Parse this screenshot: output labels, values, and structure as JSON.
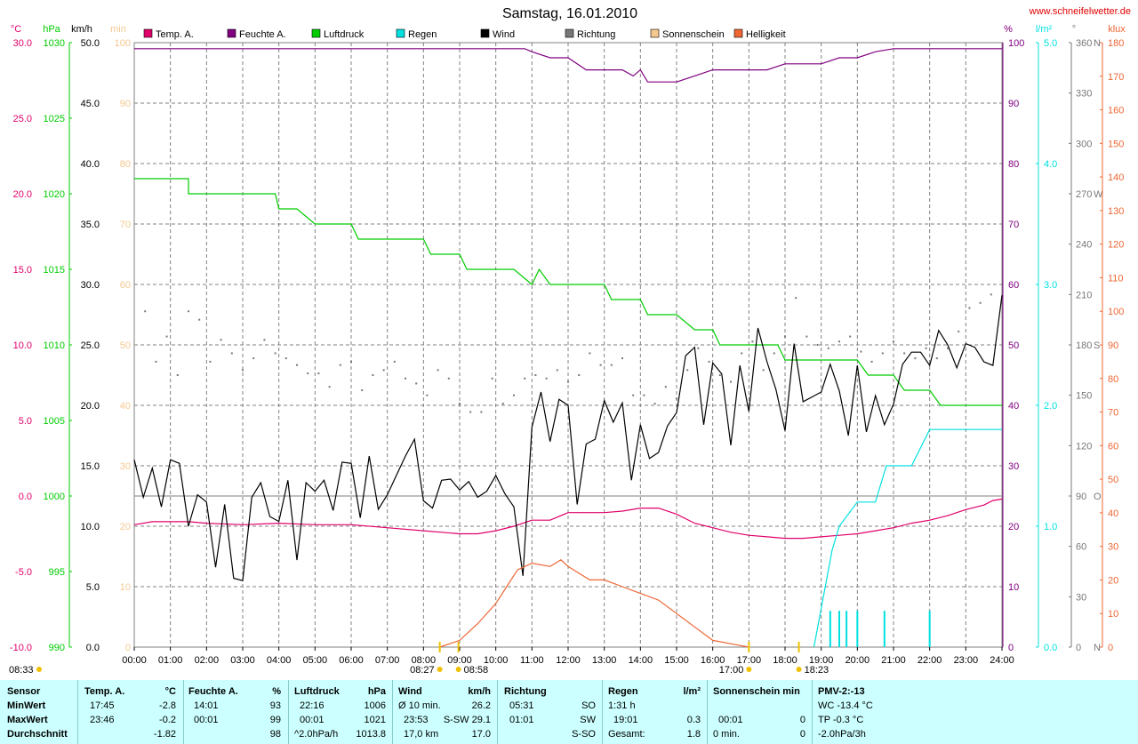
{
  "title": "Samstag, 16.01.2010",
  "website": "www.schneifelwetter.de",
  "colors": {
    "temp": "#e0006a",
    "humidity": "#800080",
    "pressure": "#00cc00",
    "rain": "#00e0e0",
    "wind": "#000000",
    "direction": "#777777",
    "sunshine": "#f5c890",
    "brightness": "#ee6633",
    "grid": "#808080",
    "footer_bg": "#ccffff"
  },
  "chart_data": {
    "type": "line",
    "legend": [
      {
        "label": "Temp. A.",
        "color": "#e0006a"
      },
      {
        "label": "Feuchte A.",
        "color": "#800080"
      },
      {
        "label": "Luftdruck",
        "color": "#00cc00"
      },
      {
        "label": "Regen",
        "color": "#00e0e0"
      },
      {
        "label": "Wind",
        "color": "#000000"
      },
      {
        "label": "Richtung",
        "color": "#777777"
      },
      {
        "label": "Sonnenschein",
        "color": "#f5c890"
      },
      {
        "label": "Helligkeit",
        "color": "#ee6633"
      }
    ],
    "x_ticks": [
      "00:00",
      "01:00",
      "02:00",
      "03:00",
      "04:00",
      "05:00",
      "06:00",
      "07:00",
      "08:00",
      "09:00",
      "10:00",
      "11:00",
      "12:00",
      "13:00",
      "14:00",
      "15:00",
      "16:00",
      "17:00",
      "18:00",
      "19:00",
      "20:00",
      "21:00",
      "22:00",
      "23:00",
      "24:00"
    ],
    "x_range": [
      0,
      24
    ],
    "axes": {
      "temp": {
        "unit": "°C",
        "min": -10,
        "max": 30,
        "ticks": [
          "-10.0",
          "-5.0",
          "0.0",
          "5.0",
          "10.0",
          "15.0",
          "20.0",
          "25.0",
          "30.0"
        ]
      },
      "pressure": {
        "unit": "hPa",
        "min": 990,
        "max": 1030,
        "ticks": [
          "990",
          "995",
          "1000",
          "1005",
          "1010",
          "1015",
          "1020",
          "1025",
          "1030"
        ]
      },
      "wind": {
        "unit": "km/h",
        "min": 0,
        "max": 50,
        "ticks": [
          "0.0",
          "5.0",
          "10.0",
          "15.0",
          "20.0",
          "25.0",
          "30.0",
          "35.0",
          "40.0",
          "45.0",
          "50.0"
        ]
      },
      "sunshine": {
        "unit": "min",
        "min": 0,
        "max": 100,
        "ticks": [
          "0",
          "10",
          "20",
          "30",
          "40",
          "50",
          "60",
          "70",
          "80",
          "90",
          "100"
        ]
      },
      "humidity": {
        "unit": "%",
        "min": 0,
        "max": 100,
        "ticks": [
          "0",
          "10",
          "20",
          "30",
          "40",
          "50",
          "60",
          "70",
          "80",
          "90",
          "100"
        ]
      },
      "rain": {
        "unit": "l/m²",
        "min": 0,
        "max": 5,
        "ticks": [
          "0.0",
          "1.0",
          "2.0",
          "3.0",
          "4.0",
          "5.0"
        ]
      },
      "direction": {
        "unit": "°",
        "min": 0,
        "max": 360,
        "ticks": [
          "0",
          "30",
          "60",
          "90",
          "120",
          "150",
          "180",
          "210",
          "240",
          "270",
          "300",
          "330",
          "360"
        ],
        "labels": {
          "0": "N",
          "90": "O",
          "180": "S",
          "270": "W",
          "360": "N"
        }
      },
      "brightness": {
        "unit": "klux",
        "min": 0,
        "max": 180,
        "ticks": [
          "0",
          "10",
          "20",
          "30",
          "40",
          "50",
          "60",
          "70",
          "80",
          "90",
          "100",
          "110",
          "120",
          "130",
          "140",
          "150",
          "160",
          "170",
          "180"
        ]
      }
    },
    "series": [
      {
        "name": "Temp. A.",
        "axis": "temp",
        "x": [
          0,
          0.5,
          1,
          1.5,
          2,
          3,
          4,
          5,
          6,
          7,
          8,
          8.5,
          9,
          9.5,
          10,
          10.5,
          11,
          11.5,
          12,
          12.5,
          13,
          13.5,
          14,
          14.5,
          15,
          15.5,
          16,
          16.5,
          17,
          17.5,
          18,
          18.5,
          19,
          19.5,
          20,
          20.5,
          21,
          21.5,
          22,
          22.5,
          23,
          23.5,
          23.75,
          24
        ],
        "y": [
          -1.9,
          -1.7,
          -1.7,
          -1.7,
          -1.8,
          -1.9,
          -1.8,
          -1.9,
          -1.9,
          -2.1,
          -2.3,
          -2.4,
          -2.5,
          -2.5,
          -2.3,
          -2.0,
          -1.6,
          -1.6,
          -1.1,
          -1.1,
          -1.1,
          -1.0,
          -0.8,
          -0.8,
          -1.2,
          -1.8,
          -2.1,
          -2.4,
          -2.6,
          -2.7,
          -2.8,
          -2.8,
          -2.7,
          -2.6,
          -2.5,
          -2.3,
          -2.1,
          -1.8,
          -1.6,
          -1.3,
          -0.9,
          -0.6,
          -0.3,
          -0.2
        ]
      },
      {
        "name": "Feuchte A.",
        "axis": "humidity",
        "x": [
          0,
          10.8,
          11,
          11.5,
          12,
          12.5,
          13,
          13.5,
          13.8,
          14,
          14.2,
          15,
          15.5,
          16,
          16.5,
          17,
          17.5,
          18,
          19,
          19.5,
          20,
          20.5,
          21,
          22,
          23,
          24
        ],
        "y": [
          99,
          99,
          98.5,
          97.5,
          97.5,
          95.5,
          95.5,
          95.5,
          94.5,
          95.5,
          93.5,
          93.5,
          94.5,
          95.5,
          95.5,
          95.5,
          95.5,
          96.5,
          96.5,
          97.5,
          97.5,
          98.5,
          99,
          99,
          99,
          99
        ]
      },
      {
        "name": "Luftdruck",
        "axis": "pressure",
        "x": [
          0,
          1.5,
          1.5,
          3.9,
          4.0,
          4.5,
          5.0,
          6.0,
          6.2,
          8.0,
          8.2,
          9.0,
          9.2,
          10.5,
          11.0,
          11.2,
          11.5,
          13.0,
          13.2,
          14.0,
          14.2,
          15.0,
          15.5,
          16.0,
          16.2,
          17.8,
          18.0,
          20.0,
          20.3,
          21.0,
          21.3,
          22.0,
          22.3,
          24.0
        ],
        "y": [
          1021,
          1021,
          1020,
          1020,
          1019,
          1019,
          1018,
          1018,
          1017,
          1017,
          1016,
          1016,
          1015,
          1015,
          1014,
          1015,
          1014,
          1014,
          1013,
          1013,
          1012,
          1012,
          1011,
          1011,
          1010,
          1010,
          1009,
          1009,
          1008,
          1008,
          1007,
          1007,
          1006,
          1006
        ]
      },
      {
        "name": "Wind",
        "axis": "wind",
        "x": [
          0,
          0.25,
          0.5,
          0.75,
          1,
          1.25,
          1.5,
          1.75,
          2,
          2.25,
          2.5,
          2.75,
          3,
          3.25,
          3.5,
          3.75,
          4,
          4.25,
          4.5,
          4.75,
          5,
          5.25,
          5.5,
          5.75,
          6,
          6.25,
          6.5,
          6.75,
          7,
          7.25,
          7.5,
          7.75,
          8,
          8.25,
          8.5,
          8.75,
          9,
          9.25,
          9.5,
          9.75,
          10,
          10.25,
          10.5,
          10.75,
          11,
          11.25,
          11.5,
          11.75,
          12,
          12.25,
          12.5,
          12.75,
          13,
          13.25,
          13.5,
          13.75,
          14,
          14.25,
          14.5,
          14.75,
          15,
          15.25,
          15.5,
          15.75,
          16,
          16.25,
          16.5,
          16.75,
          17,
          17.25,
          17.5,
          17.75,
          18,
          18.25,
          18.5,
          18.75,
          19,
          19.25,
          19.5,
          19.75,
          20,
          20.25,
          20.5,
          20.75,
          21,
          21.25,
          21.5,
          21.75,
          22,
          22.25,
          22.5,
          22.75,
          23,
          23.25,
          23.5,
          23.75,
          24
        ],
        "y": [
          15.5,
          12.4,
          14.8,
          11.6,
          15.5,
          15.2,
          10.0,
          12.6,
          12.0,
          6.6,
          11.8,
          5.7,
          5.5,
          12.4,
          13.6,
          10.8,
          10.4,
          13.8,
          7.2,
          13.6,
          12.9,
          13.8,
          11.3,
          15.3,
          15.2,
          10.7,
          15.8,
          11.4,
          12.6,
          14.2,
          15.8,
          17.2,
          12.1,
          11.5,
          13.8,
          13.9,
          13.0,
          13.7,
          12.4,
          12.9,
          14.2,
          12.7,
          11.6,
          5.9,
          18.2,
          21.1,
          17.0,
          20.5,
          20.0,
          11.8,
          16.8,
          17.2,
          20.4,
          18.6,
          20.2,
          13.8,
          18.4,
          15.6,
          16.1,
          18.3,
          19.4,
          24.1,
          24.8,
          18.4,
          23.5,
          22.6,
          16.7,
          23.3,
          19.5,
          26.4,
          23.6,
          21.3,
          17.9,
          25.1,
          20.3,
          20.7,
          21.1,
          23.4,
          21.2,
          17.5,
          23.3,
          17.8,
          20.8,
          18.4,
          20.1,
          23.4,
          24.4,
          24.4,
          23.3,
          26.2,
          25.0,
          23.1,
          25.1,
          24.8,
          23.6,
          23.3,
          29.1
        ]
      },
      {
        "name": "Richtung",
        "axis": "direction",
        "type": "scatter",
        "x": [
          0.3,
          0.6,
          0.9,
          1.2,
          1.5,
          1.8,
          2.1,
          2.4,
          2.7,
          3.0,
          3.3,
          3.6,
          3.9,
          4.2,
          4.5,
          4.8,
          5.1,
          5.4,
          5.7,
          6.0,
          6.3,
          6.6,
          6.9,
          7.2,
          7.5,
          7.8,
          8.1,
          8.4,
          8.7,
          9.0,
          9.3,
          9.6,
          9.9,
          10.2,
          10.5,
          10.8,
          11.1,
          11.4,
          11.7,
          12.0,
          12.3,
          12.6,
          12.9,
          13.2,
          13.5,
          13.8,
          14.1,
          14.4,
          14.7,
          15.0,
          15.3,
          15.6,
          15.9,
          16.2,
          16.5,
          16.8,
          17.1,
          17.4,
          17.7,
          18.0,
          18.3,
          18.6,
          18.9,
          19.2,
          19.5,
          19.8,
          20.1,
          20.4,
          20.7,
          21.0,
          21.3,
          21.6,
          21.9,
          22.2,
          22.5,
          22.8,
          23.1,
          23.4,
          23.7
        ],
        "y": [
          200,
          170,
          185,
          162,
          200,
          195,
          170,
          183,
          175,
          165,
          172,
          183,
          175,
          172,
          168,
          163,
          163,
          155,
          168,
          170,
          153,
          162,
          165,
          170,
          160,
          157,
          150,
          165,
          160,
          145,
          140,
          140,
          160,
          145,
          150,
          160,
          162,
          160,
          165,
          158,
          162,
          175,
          168,
          168,
          172,
          150,
          150,
          145,
          155,
          148,
          165,
          178,
          170,
          162,
          158,
          175,
          182,
          165,
          175,
          185,
          208,
          185,
          180,
          178,
          182,
          185,
          176,
          170,
          175,
          182,
          175,
          172,
          178,
          172,
          178,
          188,
          202,
          205,
          210
        ]
      },
      {
        "name": "Helligkeit",
        "axis": "brightness",
        "x": [
          8.45,
          9.0,
          9.5,
          10.0,
          10.3,
          10.6,
          11.0,
          11.5,
          11.8,
          12.0,
          12.3,
          12.6,
          13.0,
          13.5,
          14.0,
          14.5,
          15.0,
          15.5,
          16.0,
          16.5,
          17.0
        ],
        "y": [
          0,
          2,
          7,
          13,
          18,
          23,
          25,
          24,
          26,
          24,
          22,
          20,
          20,
          18,
          16,
          14,
          10,
          6,
          2,
          1,
          0
        ]
      },
      {
        "name": "Regen",
        "axis": "rain",
        "x": [
          18.8,
          19.3,
          19.5,
          20.0,
          20.5,
          20.8,
          21.0,
          21.5,
          22.0,
          24.0
        ],
        "y": [
          0,
          0.8,
          1.0,
          1.2,
          1.2,
          1.5,
          1.5,
          1.5,
          1.8,
          1.8
        ]
      },
      {
        "name": "Regen Intervall",
        "axis": "rain",
        "type": "bar",
        "x": [
          19.25,
          19.5,
          19.7,
          20.0,
          20.75,
          22.0
        ],
        "y": [
          0.3,
          0.3,
          0.3,
          0.3,
          0.3,
          0.3
        ]
      }
    ],
    "sun_markers": {
      "sunrise": "08:33",
      "civil_dawn": "08:27",
      "dawn_end": "08:58",
      "sunset": "17:00",
      "civil_dusk": "18:23"
    }
  },
  "footer": {
    "headers": {
      "sensor": "Sensor",
      "temp": "Temp. A.",
      "temp_unit": "°C",
      "humidity": "Feuchte A.",
      "humidity_unit": "%",
      "pressure": "Luftdruck",
      "pressure_unit": "hPa",
      "wind": "Wind",
      "wind_unit": "km/h",
      "direction": "Richtung",
      "rain": "Regen",
      "rain_unit": "l/m²",
      "sunshine": "Sonnenschein min",
      "pmv": "PMV-2:-13"
    },
    "row_labels": [
      "MinWert",
      "MaxWert",
      "Durchschnitt"
    ],
    "temp": [
      [
        "17:45",
        "-2.8"
      ],
      [
        "23:46",
        "-0.2"
      ],
      [
        "",
        "-1.82"
      ]
    ],
    "humidity": [
      [
        "14:01",
        "93"
      ],
      [
        "00:01",
        "99"
      ],
      [
        "",
        "98"
      ]
    ],
    "pressure": [
      [
        "22:16",
        "1006"
      ],
      [
        "00:01",
        "1021"
      ],
      [
        "^2.0hPa/h",
        "1013.8"
      ]
    ],
    "wind": [
      [
        "Ø 10 min.",
        "26.2"
      ],
      [
        "23:53",
        "S-SW 29.1"
      ],
      [
        "17,0 km",
        "17.0"
      ]
    ],
    "direction": [
      [
        "05:31",
        "SO"
      ],
      [
        "01:01",
        "SW"
      ],
      [
        "",
        "S-SO"
      ]
    ],
    "rain": [
      [
        "1:31 h",
        ""
      ],
      [
        "19:01",
        "0.3"
      ],
      [
        "Gesamt:",
        "1.8"
      ]
    ],
    "sunshine": [
      [
        "",
        ""
      ],
      [
        "00:01",
        "0"
      ],
      [
        "0 min.",
        "0"
      ]
    ],
    "pmv": [
      "WC -13.4 °C",
      "TP -0.3 °C",
      "-2.0hPa/3h"
    ]
  }
}
